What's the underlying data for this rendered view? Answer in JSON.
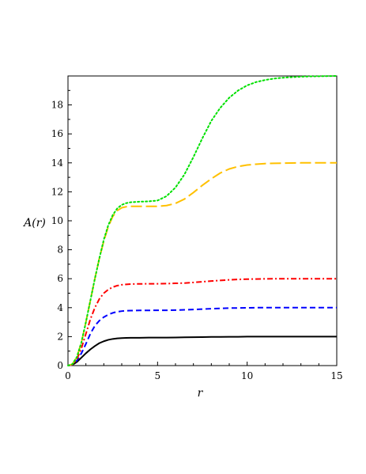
{
  "chart_data": {
    "type": "line",
    "title": "",
    "xlabel": "r",
    "ylabel": "A(r)",
    "xlim": [
      0,
      15
    ],
    "ylim": [
      0,
      20
    ],
    "xticks": [
      0,
      5,
      10,
      15
    ],
    "yticks": [
      0,
      2,
      4,
      6,
      8,
      10,
      12,
      14,
      16,
      18
    ],
    "grid": false,
    "legend": "none",
    "x": [
      0,
      0.25,
      0.5,
      0.75,
      1,
      1.25,
      1.5,
      1.75,
      2,
      2.25,
      2.5,
      2.75,
      3,
      3.25,
      3.5,
      3.75,
      4,
      4.5,
      5,
      5.5,
      6,
      6.5,
      7,
      7.5,
      8,
      8.5,
      9,
      9.5,
      10,
      10.5,
      11,
      11.5,
      12,
      12.5,
      13,
      13.5,
      14,
      14.5,
      15
    ],
    "series": [
      {
        "color": "#000000",
        "dash": "solid",
        "values": [
          0,
          0.05,
          0.25,
          0.55,
          0.85,
          1.12,
          1.35,
          1.55,
          1.68,
          1.78,
          1.84,
          1.88,
          1.9,
          1.91,
          1.92,
          1.92,
          1.92,
          1.93,
          1.93,
          1.93,
          1.94,
          1.95,
          1.96,
          1.97,
          1.98,
          1.98,
          1.99,
          1.99,
          2.0,
          2.0,
          2.0,
          2.0,
          2.0,
          2.0,
          2.0,
          2.0,
          2.0,
          2.0,
          2.0
        ]
      },
      {
        "color": "#0000ff",
        "dash": "dash",
        "values": [
          0,
          0.06,
          0.35,
          0.85,
          1.5,
          2.2,
          2.75,
          3.1,
          3.35,
          3.52,
          3.64,
          3.72,
          3.76,
          3.79,
          3.8,
          3.8,
          3.81,
          3.81,
          3.82,
          3.82,
          3.83,
          3.85,
          3.87,
          3.9,
          3.93,
          3.95,
          3.97,
          3.98,
          3.99,
          4.0,
          4.0,
          4.0,
          4.0,
          4.0,
          4.0,
          4.0,
          4.0,
          4.0,
          4.0
        ]
      },
      {
        "color": "#ff0000",
        "dash": "dashdot",
        "values": [
          0,
          0.07,
          0.45,
          1.2,
          2.2,
          3.2,
          4.0,
          4.6,
          5.0,
          5.25,
          5.42,
          5.52,
          5.58,
          5.61,
          5.63,
          5.64,
          5.64,
          5.65,
          5.65,
          5.66,
          5.68,
          5.7,
          5.74,
          5.79,
          5.84,
          5.88,
          5.92,
          5.95,
          5.97,
          5.98,
          5.99,
          6.0,
          6.0,
          6.0,
          6.0,
          6.0,
          6.0,
          6.0,
          6.0
        ]
      },
      {
        "color": "#ffc000",
        "dash": "longdash",
        "values": [
          0,
          0.1,
          0.6,
          1.6,
          3.0,
          4.5,
          6.0,
          7.4,
          8.6,
          9.6,
          10.3,
          10.7,
          10.9,
          10.97,
          11.0,
          11.0,
          11.0,
          11.0,
          11.0,
          11.05,
          11.2,
          11.5,
          11.95,
          12.45,
          12.9,
          13.3,
          13.58,
          13.75,
          13.85,
          13.91,
          13.95,
          13.97,
          13.98,
          13.99,
          14.0,
          14.0,
          14.0,
          14.0,
          14.0
        ]
      },
      {
        "color": "#00e000",
        "dash": "dot",
        "values": [
          0,
          0.1,
          0.6,
          1.6,
          3.0,
          4.5,
          6.0,
          7.4,
          8.7,
          9.7,
          10.4,
          10.85,
          11.1,
          11.22,
          11.28,
          11.3,
          11.32,
          11.34,
          11.4,
          11.7,
          12.3,
          13.2,
          14.4,
          15.7,
          16.9,
          17.8,
          18.5,
          19.0,
          19.35,
          19.58,
          19.72,
          19.82,
          19.88,
          19.92,
          19.95,
          19.97,
          19.98,
          19.99,
          20.0
        ]
      }
    ]
  }
}
